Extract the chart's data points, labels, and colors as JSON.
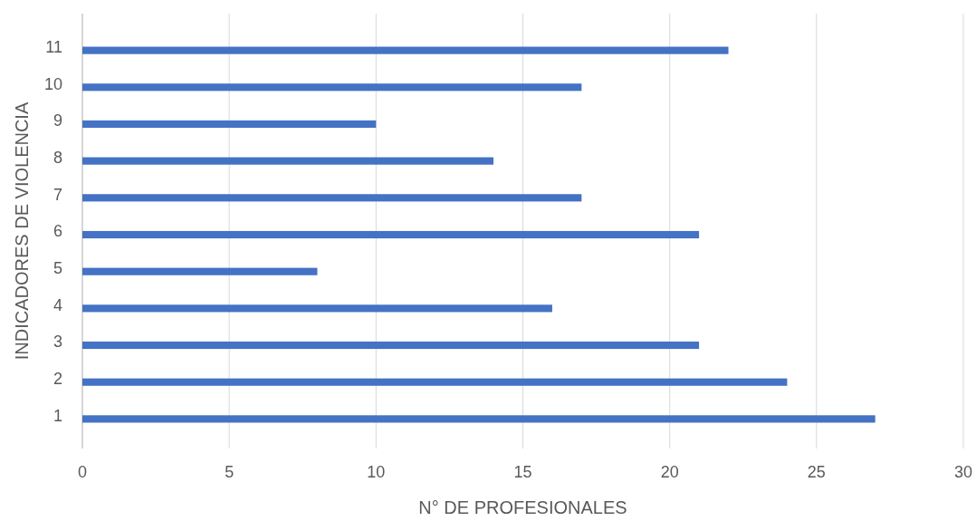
{
  "chart_data": {
    "type": "bar",
    "orientation": "horizontal",
    "xlabel": "N° DE PROFESIONALES",
    "ylabel": "INDICADORES DE VIOLENCIA",
    "categories": [
      "11",
      "10",
      "9",
      "8",
      "7",
      "6",
      "5",
      "4",
      "3",
      "2",
      "1"
    ],
    "values": [
      22,
      17,
      10,
      14,
      17,
      21,
      8,
      16,
      21,
      24,
      27
    ],
    "color": "#4472c4",
    "xlim": [
      0,
      30
    ],
    "xticks": [
      0,
      5,
      10,
      15,
      20,
      25,
      30
    ],
    "grid": "x"
  }
}
